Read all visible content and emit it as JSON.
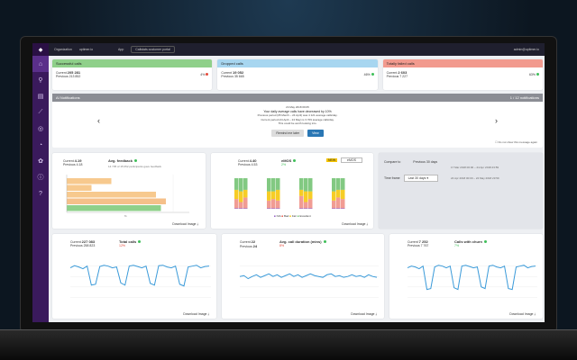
{
  "topbar": {
    "org_label": "Organization",
    "org_value": "uptimer.io",
    "app_label": "App",
    "app_value": "Callstats customer portal",
    "user": "admin@uptimer.io"
  },
  "status_cards": [
    {
      "title": "Successful calls",
      "color": "#8fd08a",
      "current_label": "Current",
      "current": "205 281",
      "previous_label": "Previous",
      "previous": "213 852",
      "change": "4%",
      "dot": "#e64a3b"
    },
    {
      "title": "Dropped calls",
      "color": "#a7d6f0",
      "current_label": "Current",
      "current": "19 052",
      "previous_label": "Previous",
      "previous": "35 665",
      "change": "46%",
      "dot": "#3fbf5a"
    },
    {
      "title": "Totally failed calls",
      "color": "#f29a8e",
      "current_label": "Current",
      "current": "2 603",
      "previous_label": "Previous",
      "previous": "7 227",
      "change": "63%",
      "dot": "#3fbf5a"
    }
  ],
  "notifications": {
    "title": "AI Notifications",
    "count": "1 / 12 notifications",
    "date": "24 May 2018 09:05",
    "line1": "Your daily average calls have decreased by 10%",
    "line2": "Previous period (05 March – 24 April) was 4 121 average calls/day.",
    "line3": "Current period (24 April – 24 May) is 3 709 average calls/day.",
    "line4": "This could be worth looking into.",
    "remind_btn": "Remind me later",
    "view_btn": "View",
    "dont_show": "Do not show this message again"
  },
  "feedback": {
    "current_label": "Current",
    "current": "4.19",
    "previous_label": "Previous",
    "previous": "4.18",
    "title": "Avg. feedback",
    "subtitle": "14 735 of 15 052 participants gave feedback",
    "download": "Download Image"
  },
  "emos": {
    "current_label": "Current",
    "current": "4.40",
    "previous_label": "Previous",
    "previous": "4.53",
    "title": "eMOS",
    "change": "2%",
    "badge": "NEW",
    "select": "eMOS",
    "legend": [
      "N/A",
      "Bad",
      "Fair",
      "Excellent"
    ],
    "download": "Download Image"
  },
  "compare": {
    "compare_label": "Compare to",
    "compare_value": "Previous 30 days",
    "time_label": "Time frame",
    "time_value": "Last 30 days",
    "range1": "17 Mar 2018 00:00 – 24 Apr 2018 23:59",
    "range2": "24 Apr 2018 00:00 – 24 May 2018 23:59"
  },
  "total_calls": {
    "current_label": "Current",
    "current": "227 083",
    "previous_label": "Previous",
    "previous": "258 823",
    "title": "Total calls",
    "change": "12%",
    "download": "Download Image"
  },
  "duration": {
    "current_label": "Current",
    "current": "22",
    "previous_label": "Previous",
    "previous": "24",
    "title": "Avg. call duration (mins)",
    "change": "8%",
    "download": "Download Image"
  },
  "churn": {
    "current_label": "Current",
    "current": "7 252",
    "previous_label": "Previous",
    "previous": "7 767",
    "title": "Calls with churn",
    "change": "7%",
    "download": "Download Image"
  },
  "chart_data": [
    {
      "type": "bar",
      "orientation": "horizontal",
      "categories": [
        "5",
        "4",
        "3",
        "2",
        "1"
      ],
      "values": [
        0.45,
        0.25,
        0.9,
        1.0,
        0.95
      ],
      "xlabel": "%"
    },
    {
      "type": "bar",
      "stacked": true,
      "series": [
        {
          "name": "N/A",
          "values": [
            2,
            2,
            2,
            2,
            2,
            2,
            2,
            2,
            2,
            2,
            2,
            2
          ]
        },
        {
          "name": "Bad",
          "values": [
            30,
            20,
            35,
            25,
            30,
            25,
            40,
            20,
            30,
            25,
            35,
            30
          ]
        },
        {
          "name": "Fair",
          "values": [
            30,
            35,
            25,
            30,
            25,
            35,
            20,
            35,
            25,
            30,
            25,
            30
          ]
        },
        {
          "name": "Excellent",
          "values": [
            38,
            43,
            38,
            43,
            43,
            38,
            38,
            43,
            43,
            43,
            38,
            38
          ]
        }
      ]
    },
    {
      "type": "line",
      "values": [
        80,
        85,
        82,
        78,
        84,
        40,
        42,
        83,
        86,
        84,
        80,
        82,
        45,
        40,
        84,
        86,
        83,
        80,
        84,
        44,
        40,
        85,
        86,
        82,
        80,
        84,
        42,
        38,
        82,
        84,
        86,
        80,
        83,
        84
      ]
    },
    {
      "type": "line",
      "values": [
        60,
        62,
        55,
        60,
        64,
        58,
        62,
        66,
        60,
        64,
        58,
        62,
        66,
        60,
        64,
        58,
        62,
        66,
        62,
        60,
        58,
        64,
        66,
        60,
        62,
        58,
        60,
        64,
        60,
        62,
        58,
        64,
        60,
        58
      ]
    },
    {
      "type": "line",
      "values": [
        80,
        84,
        82,
        78,
        84,
        30,
        32,
        82,
        86,
        84,
        80,
        84,
        34,
        30,
        84,
        86,
        83,
        80,
        82,
        36,
        32,
        84,
        86,
        82,
        80,
        84,
        32,
        30,
        82,
        84,
        86,
        80,
        83,
        84
      ]
    }
  ]
}
